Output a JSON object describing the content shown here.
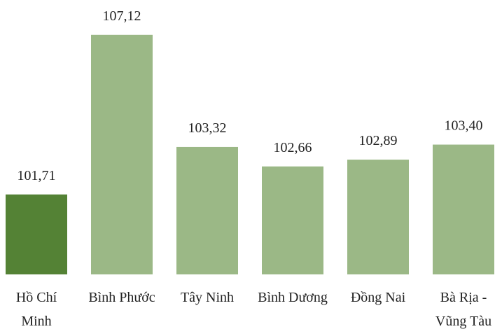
{
  "chart_data": {
    "type": "bar",
    "categories": [
      "Hồ Chí Minh",
      "Bình Phước",
      "Tây Ninh",
      "Bình Dương",
      "Đồng Nai",
      "Bà Rịa - Vũng Tàu"
    ],
    "values": [
      101.71,
      107.12,
      103.32,
      102.66,
      102.89,
      103.4
    ],
    "value_labels": [
      "101,71",
      "107,12",
      "103,32",
      "102,66",
      "102,89",
      "103,40"
    ],
    "colors": [
      "#548235",
      "#9bb886",
      "#9bb886",
      "#9bb886",
      "#9bb886",
      "#9bb886"
    ],
    "ylim": [
      99,
      108
    ]
  }
}
